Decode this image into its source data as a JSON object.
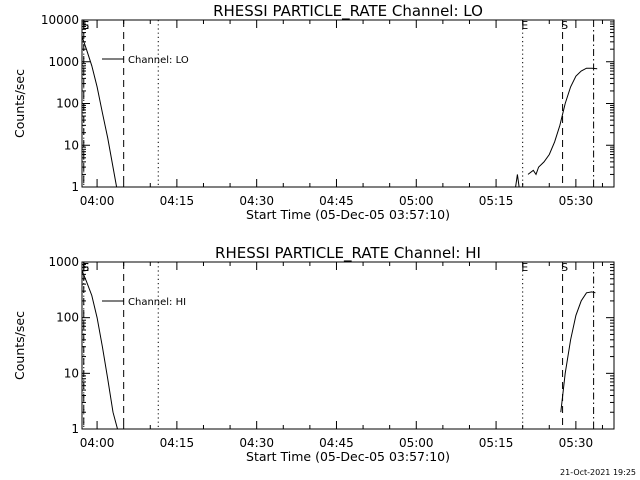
{
  "chart_data": [
    {
      "type": "line",
      "title": "RHESSI PARTICLE_RATE Channel: LO",
      "xlabel": "Start Time (05-Dec-05 03:57:10)",
      "ylabel": "Counts/sec",
      "yscale": "log",
      "xlim": [
        "03:57:10",
        "05:37:10"
      ],
      "ylim": [
        1,
        10000
      ],
      "x_ticks": [
        "04:00",
        "04:15",
        "04:30",
        "04:45",
        "05:00",
        "05:15",
        "05:30"
      ],
      "y_ticks": [
        "1",
        "10",
        "100",
        "1000",
        "10000"
      ],
      "legend": {
        "position": "top-left",
        "entries": [
          "Channel: LO"
        ]
      },
      "grid": false,
      "series": [
        {
          "name": "Channel: LO",
          "segments": [
            {
              "x": [
                "03:57:10",
                "03:58:00",
                "03:59:00",
                "04:00:00",
                "04:01:00",
                "04:02:00",
                "04:03:00",
                "04:03:40"
              ],
              "y": [
                4000,
                2000,
                800,
                250,
                60,
                15,
                3,
                1
              ]
            },
            {
              "x": [
                "05:18:40",
                "05:19:00",
                "05:19:20"
              ],
              "y": [
                1,
                2,
                1
              ]
            },
            {
              "x": [
                "05:21:00",
                "05:22:00",
                "05:22:30",
                "05:23:00",
                "05:24:00",
                "05:25:00",
                "05:26:00",
                "05:27:00",
                "05:28:00",
                "05:29:00",
                "05:30:00",
                "05:31:00",
                "05:32:00",
                "05:33:00",
                "05:34:00"
              ],
              "y": [
                2,
                2.5,
                2,
                3,
                4,
                6,
                12,
                30,
                100,
                250,
                450,
                600,
                700,
                700,
                680
              ]
            }
          ]
        }
      ],
      "vlines": [
        {
          "x": "03:57:30",
          "style": "dashed",
          "label": "S"
        },
        {
          "x": "03:57:30",
          "style": "dotted",
          "label": "E"
        },
        {
          "x": "04:05:00",
          "style": "dashed"
        },
        {
          "x": "04:11:30",
          "style": "dotted"
        },
        {
          "x": "05:20:00",
          "style": "dotted",
          "label": "E"
        },
        {
          "x": "05:27:30",
          "style": "dashed",
          "label": "S"
        },
        {
          "x": "05:33:20",
          "style": "dashdot"
        }
      ]
    },
    {
      "type": "line",
      "title": "RHESSI PARTICLE_RATE Channel: HI",
      "xlabel": "Start Time (05-Dec-05 03:57:10)",
      "ylabel": "Counts/sec",
      "yscale": "log",
      "xlim": [
        "03:57:10",
        "05:37:10"
      ],
      "ylim": [
        1,
        1000
      ],
      "x_ticks": [
        "04:00",
        "04:15",
        "04:30",
        "04:45",
        "05:00",
        "05:15",
        "05:30"
      ],
      "y_ticks": [
        "1",
        "10",
        "100",
        "1000"
      ],
      "legend": {
        "position": "top-left",
        "entries": [
          "Channel: HI"
        ]
      },
      "grid": false,
      "series": [
        {
          "name": "Channel: HI",
          "segments": [
            {
              "x": [
                "03:57:10",
                "03:58:00",
                "03:59:00",
                "04:00:00",
                "04:01:00",
                "04:02:00",
                "04:03:00",
                "04:03:50"
              ],
              "y": [
                700,
                450,
                250,
                100,
                30,
                8,
                2,
                1
              ]
            },
            {
              "x": [
                "05:27:10",
                "05:28:00",
                "05:29:00",
                "05:30:00",
                "05:31:00",
                "05:32:00",
                "05:33:00",
                "05:33:40"
              ],
              "y": [
                2,
                10,
                40,
                110,
                200,
                280,
                290,
                280
              ]
            }
          ]
        }
      ],
      "vlines": [
        {
          "x": "03:57:30",
          "style": "dashed",
          "label": "S"
        },
        {
          "x": "03:57:30",
          "style": "dotted",
          "label": "E"
        },
        {
          "x": "04:05:00",
          "style": "dashed"
        },
        {
          "x": "04:11:30",
          "style": "dotted"
        },
        {
          "x": "05:20:00",
          "style": "dotted",
          "label": "E"
        },
        {
          "x": "05:27:30",
          "style": "dashed",
          "label": "S"
        },
        {
          "x": "05:33:20",
          "style": "dashdot"
        }
      ]
    }
  ],
  "footer": {
    "timestamp": "21-Oct-2021 19:25"
  }
}
